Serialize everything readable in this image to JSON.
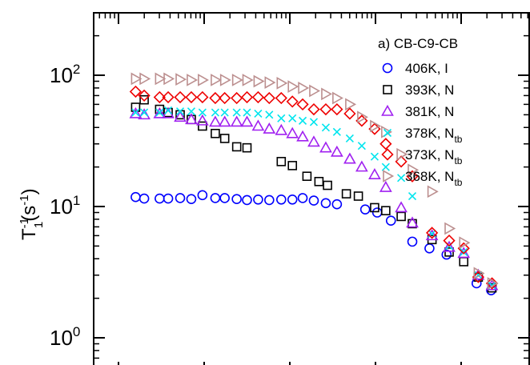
{
  "chart_data": {
    "type": "scatter",
    "title": "",
    "annotation": "a) CB-C9-CB",
    "xlabel": "",
    "ylabel": {
      "main": "T",
      "sub": "1",
      "sup1": "-1",
      "mid": "(s",
      "sup2": "-1",
      "end": ")"
    },
    "y_scale": "log",
    "ylim": [
      0.3,
      400
    ],
    "y_ticks": [
      {
        "value": 1,
        "base": "10",
        "exp": "0"
      },
      {
        "value": 10,
        "base": "10",
        "exp": "1"
      },
      {
        "value": 100,
        "base": "10",
        "exp": "2"
      }
    ],
    "x_scale": "log",
    "xlim_decades": [
      0,
      5
    ],
    "grid": false,
    "legend_position": "top-right",
    "series": [
      {
        "name": "406K, I",
        "label": {
          "main": "406K, I",
          "sub": ""
        },
        "marker": "circle",
        "color": "#0000ff",
        "points": [
          [
            0.2,
            11.8
          ],
          [
            0.3,
            11.5
          ],
          [
            0.48,
            11.5
          ],
          [
            0.58,
            11.5
          ],
          [
            0.72,
            11.6
          ],
          [
            0.85,
            11.4
          ],
          [
            0.98,
            12.2
          ],
          [
            1.13,
            11.6
          ],
          [
            1.24,
            11.6
          ],
          [
            1.38,
            11.4
          ],
          [
            1.5,
            11.2
          ],
          [
            1.63,
            11.3
          ],
          [
            1.76,
            11.2
          ],
          [
            1.9,
            11.3
          ],
          [
            2.03,
            11.3
          ],
          [
            2.15,
            11.6
          ],
          [
            2.28,
            11.1
          ],
          [
            2.42,
            10.6
          ],
          [
            2.55,
            10.4
          ],
          [
            2.88,
            9.5
          ],
          [
            3.02,
            9.0
          ],
          [
            3.18,
            7.8
          ],
          [
            3.43,
            5.4
          ],
          [
            3.63,
            4.8
          ],
          [
            3.83,
            4.3
          ],
          [
            4.18,
            2.6
          ],
          [
            4.35,
            2.3
          ],
          [
            4.87,
            1.05
          ]
        ]
      },
      {
        "name": "393K, N",
        "label": {
          "main": "393K, N",
          "sub": ""
        },
        "marker": "square",
        "color": "#000000",
        "points": [
          [
            0.2,
            57
          ],
          [
            0.3,
            65
          ],
          [
            0.48,
            55
          ],
          [
            0.58,
            52
          ],
          [
            0.72,
            50
          ],
          [
            0.85,
            46
          ],
          [
            0.98,
            41
          ],
          [
            1.13,
            36
          ],
          [
            1.24,
            33
          ],
          [
            1.38,
            28.5
          ],
          [
            1.5,
            28
          ],
          [
            1.9,
            22
          ],
          [
            2.03,
            20.5
          ],
          [
            2.2,
            17
          ],
          [
            2.34,
            15.5
          ],
          [
            2.44,
            14.5
          ],
          [
            2.66,
            12.5
          ],
          [
            2.8,
            12
          ],
          [
            2.99,
            9.8
          ],
          [
            3.12,
            9.3
          ],
          [
            3.3,
            8.4
          ],
          [
            3.43,
            7.4
          ],
          [
            3.66,
            5.6
          ],
          [
            3.86,
            4.5
          ],
          [
            4.03,
            3.8
          ],
          [
            4.2,
            2.9
          ],
          [
            4.36,
            2.4
          ],
          [
            4.87,
            1.0
          ]
        ]
      },
      {
        "name": "381K, N",
        "label": {
          "main": "381K, N",
          "sub": ""
        },
        "marker": "triangle-up",
        "color": "#a020f0",
        "points": [
          [
            0.2,
            51
          ],
          [
            0.3,
            50
          ],
          [
            0.48,
            51
          ],
          [
            0.58,
            51
          ],
          [
            0.72,
            48
          ],
          [
            0.85,
            46
          ],
          [
            0.98,
            45
          ],
          [
            1.13,
            44
          ],
          [
            1.24,
            44
          ],
          [
            1.38,
            44
          ],
          [
            1.5,
            44
          ],
          [
            1.63,
            41
          ],
          [
            1.76,
            39
          ],
          [
            1.9,
            38
          ],
          [
            2.03,
            36
          ],
          [
            2.15,
            34
          ],
          [
            2.28,
            31
          ],
          [
            2.42,
            28
          ],
          [
            2.55,
            26
          ],
          [
            2.7,
            23
          ],
          [
            2.84,
            20
          ],
          [
            2.99,
            17.5
          ],
          [
            3.12,
            14
          ],
          [
            3.3,
            9.8
          ],
          [
            3.43,
            7.5
          ],
          [
            3.66,
            6.0
          ],
          [
            3.86,
            4.9
          ],
          [
            4.03,
            4.4
          ],
          [
            4.2,
            3.0
          ],
          [
            4.36,
            2.5
          ],
          [
            4.87,
            1.1
          ]
        ]
      },
      {
        "name": "378K, N_tb",
        "label": {
          "main": "378K, N",
          "sub": "tb"
        },
        "marker": "x",
        "color": "#00e5ee",
        "points": [
          [
            0.2,
            52
          ],
          [
            0.3,
            52
          ],
          [
            0.48,
            52
          ],
          [
            0.58,
            54
          ],
          [
            0.72,
            53
          ],
          [
            0.85,
            53
          ],
          [
            0.98,
            52
          ],
          [
            1.13,
            52
          ],
          [
            1.24,
            52
          ],
          [
            1.38,
            52
          ],
          [
            1.5,
            52
          ],
          [
            1.63,
            51
          ],
          [
            1.76,
            50
          ],
          [
            1.9,
            47
          ],
          [
            2.03,
            47
          ],
          [
            2.15,
            45
          ],
          [
            2.28,
            44
          ],
          [
            2.42,
            40
          ],
          [
            2.55,
            37
          ],
          [
            2.7,
            33
          ],
          [
            2.84,
            29
          ],
          [
            2.99,
            24
          ],
          [
            3.12,
            20
          ],
          [
            3.3,
            16.5
          ],
          [
            3.43,
            12
          ],
          [
            3.66,
            6.2
          ],
          [
            3.86,
            5.0
          ],
          [
            4.03,
            4.5
          ],
          [
            4.2,
            3.0
          ],
          [
            4.36,
            2.5
          ],
          [
            4.87,
            1.1
          ]
        ]
      },
      {
        "name": "373K, N_tb",
        "label": {
          "main": "373K, N",
          "sub": "tb"
        },
        "marker": "diamond",
        "color": "#ee0000",
        "points": [
          [
            0.2,
            75
          ],
          [
            0.3,
            70
          ],
          [
            0.48,
            68
          ],
          [
            0.58,
            68
          ],
          [
            0.72,
            68
          ],
          [
            0.85,
            68
          ],
          [
            0.98,
            68
          ],
          [
            1.13,
            67
          ],
          [
            1.24,
            67
          ],
          [
            1.38,
            67
          ],
          [
            1.5,
            68
          ],
          [
            1.63,
            68
          ],
          [
            1.76,
            67
          ],
          [
            1.9,
            67
          ],
          [
            2.03,
            63
          ],
          [
            2.15,
            60
          ],
          [
            2.28,
            55
          ],
          [
            2.42,
            55
          ],
          [
            2.55,
            55
          ],
          [
            2.7,
            51
          ],
          [
            2.84,
            45
          ],
          [
            2.99,
            39
          ],
          [
            3.12,
            30
          ],
          [
            3.3,
            22
          ],
          [
            3.43,
            17
          ],
          [
            3.66,
            6.3
          ],
          [
            3.86,
            5.5
          ],
          [
            4.03,
            4.8
          ],
          [
            4.2,
            2.9
          ],
          [
            4.36,
            2.6
          ],
          [
            4.87,
            1.1
          ]
        ]
      },
      {
        "name": "368K, N_tb",
        "label": {
          "main": "368K, N",
          "sub": "tb"
        },
        "marker": "triangle-right",
        "color": "#bc8f8f",
        "points": [
          [
            0.2,
            94
          ],
          [
            0.3,
            94
          ],
          [
            0.48,
            94
          ],
          [
            0.58,
            94
          ],
          [
            0.72,
            93
          ],
          [
            0.85,
            92
          ],
          [
            0.98,
            92
          ],
          [
            1.13,
            92
          ],
          [
            1.24,
            92
          ],
          [
            1.38,
            92
          ],
          [
            1.5,
            92
          ],
          [
            1.63,
            90
          ],
          [
            1.76,
            88
          ],
          [
            1.9,
            87
          ],
          [
            2.03,
            82
          ],
          [
            2.15,
            80
          ],
          [
            2.28,
            76
          ],
          [
            2.42,
            72
          ],
          [
            2.55,
            67
          ],
          [
            2.7,
            60
          ],
          [
            2.84,
            48
          ],
          [
            2.99,
            41
          ],
          [
            3.12,
            37
          ],
          [
            3.3,
            25
          ],
          [
            3.43,
            19
          ],
          [
            3.66,
            13
          ],
          [
            3.86,
            6.8
          ],
          [
            4.03,
            5.3
          ],
          [
            4.2,
            3.1
          ],
          [
            4.36,
            2.6
          ],
          [
            4.87,
            1.1
          ]
        ]
      }
    ]
  }
}
